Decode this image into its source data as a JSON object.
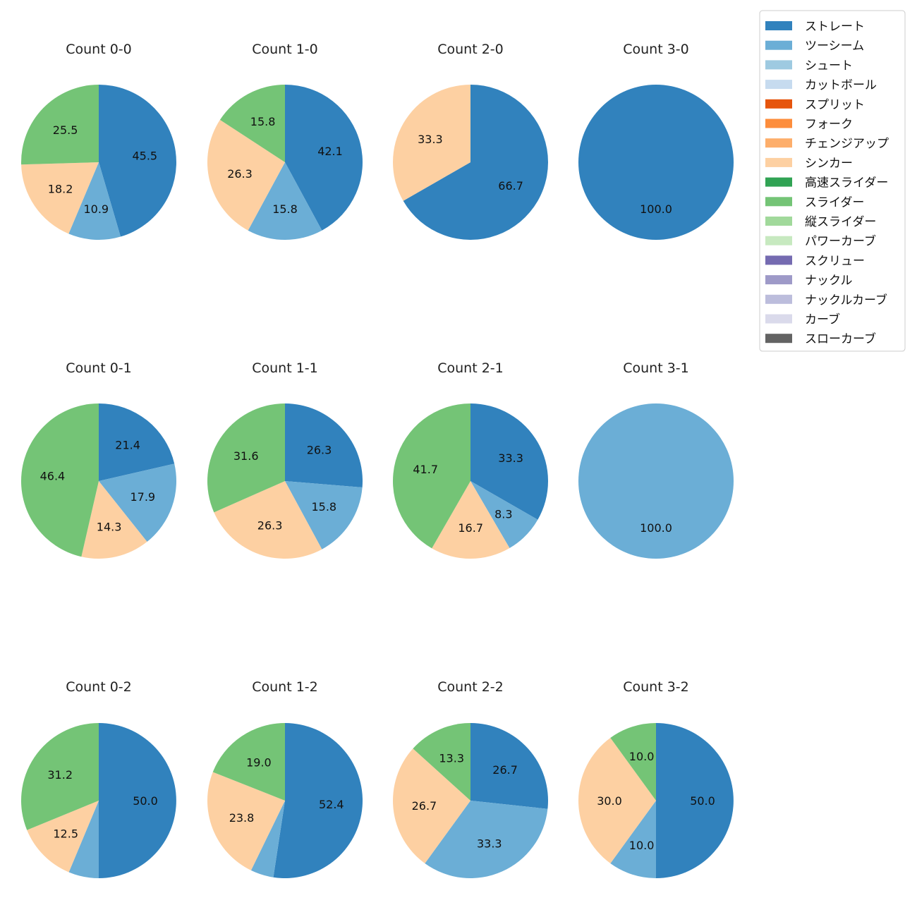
{
  "legend": {
    "placement": "top-right",
    "entries": [
      {
        "name": "ストレート",
        "color": "#3182bd"
      },
      {
        "name": "ツーシーム",
        "color": "#6baed6"
      },
      {
        "name": "シュート",
        "color": "#9ecae1"
      },
      {
        "name": "カットボール",
        "color": "#c6dbef"
      },
      {
        "name": "スプリット",
        "color": "#e6550d"
      },
      {
        "name": "フォーク",
        "color": "#fd8d3c"
      },
      {
        "name": "チェンジアップ",
        "color": "#fdae6b"
      },
      {
        "name": "シンカー",
        "color": "#fdd0a2"
      },
      {
        "name": "高速スライダー",
        "color": "#31a354"
      },
      {
        "name": "スライダー",
        "color": "#74c476"
      },
      {
        "name": "縦スライダー",
        "color": "#a1d99b"
      },
      {
        "name": "パワーカーブ",
        "color": "#c7e9c0"
      },
      {
        "name": "スクリュー",
        "color": "#756bb1"
      },
      {
        "name": "ナックル",
        "color": "#9e9ac8"
      },
      {
        "name": "ナックルカーブ",
        "color": "#bcbddc"
      },
      {
        "name": "カーブ",
        "color": "#dadaeb"
      },
      {
        "name": "スローカーブ",
        "color": "#636363"
      }
    ]
  },
  "chart_data": [
    {
      "type": "pie",
      "title": "Count 0-0",
      "slices": [
        {
          "name": "ストレート",
          "value": 45.5,
          "label": "45.5"
        },
        {
          "name": "ツーシーム",
          "value": 10.9,
          "label": "10.9"
        },
        {
          "name": "シンカー",
          "value": 18.2,
          "label": "18.2"
        },
        {
          "name": "スライダー",
          "value": 25.5,
          "label": "25.5"
        }
      ]
    },
    {
      "type": "pie",
      "title": "Count 1-0",
      "slices": [
        {
          "name": "ストレート",
          "value": 42.1,
          "label": "42.1"
        },
        {
          "name": "ツーシーム",
          "value": 15.8,
          "label": "15.8"
        },
        {
          "name": "シンカー",
          "value": 26.3,
          "label": "26.3"
        },
        {
          "name": "スライダー",
          "value": 15.8,
          "label": "15.8"
        }
      ]
    },
    {
      "type": "pie",
      "title": "Count 2-0",
      "slices": [
        {
          "name": "ストレート",
          "value": 66.7,
          "label": "66.7"
        },
        {
          "name": "シンカー",
          "value": 33.3,
          "label": "33.3"
        }
      ]
    },
    {
      "type": "pie",
      "title": "Count 3-0",
      "slices": [
        {
          "name": "ストレート",
          "value": 100.0,
          "label": "100.0"
        }
      ]
    },
    {
      "type": "pie",
      "title": "Count 0-1",
      "slices": [
        {
          "name": "ストレート",
          "value": 21.4,
          "label": "21.4"
        },
        {
          "name": "ツーシーム",
          "value": 17.9,
          "label": "17.9"
        },
        {
          "name": "シンカー",
          "value": 14.3,
          "label": "14.3"
        },
        {
          "name": "スライダー",
          "value": 46.4,
          "label": "46.4"
        }
      ]
    },
    {
      "type": "pie",
      "title": "Count 1-1",
      "slices": [
        {
          "name": "ストレート",
          "value": 26.3,
          "label": "26.3"
        },
        {
          "name": "ツーシーム",
          "value": 15.8,
          "label": "15.8"
        },
        {
          "name": "シンカー",
          "value": 26.3,
          "label": "26.3"
        },
        {
          "name": "スライダー",
          "value": 31.6,
          "label": "31.6"
        }
      ]
    },
    {
      "type": "pie",
      "title": "Count 2-1",
      "slices": [
        {
          "name": "ストレート",
          "value": 33.3,
          "label": "33.3"
        },
        {
          "name": "ツーシーム",
          "value": 8.3,
          "label": "8.3"
        },
        {
          "name": "シンカー",
          "value": 16.7,
          "label": "16.7"
        },
        {
          "name": "スライダー",
          "value": 41.7,
          "label": "41.7"
        }
      ]
    },
    {
      "type": "pie",
      "title": "Count 3-1",
      "slices": [
        {
          "name": "ツーシーム",
          "value": 100.0,
          "label": "100.0"
        }
      ]
    },
    {
      "type": "pie",
      "title": "Count 0-2",
      "slices": [
        {
          "name": "ストレート",
          "value": 50.0,
          "label": "50.0"
        },
        {
          "name": "ツーシーム",
          "value": 6.3,
          "label": ""
        },
        {
          "name": "シンカー",
          "value": 12.5,
          "label": "12.5"
        },
        {
          "name": "スライダー",
          "value": 31.2,
          "label": "31.2"
        }
      ]
    },
    {
      "type": "pie",
      "title": "Count 1-2",
      "slices": [
        {
          "name": "ストレート",
          "value": 52.4,
          "label": "52.4"
        },
        {
          "name": "ツーシーム",
          "value": 4.8,
          "label": ""
        },
        {
          "name": "シンカー",
          "value": 23.8,
          "label": "23.8"
        },
        {
          "name": "スライダー",
          "value": 19.0,
          "label": "19.0"
        }
      ]
    },
    {
      "type": "pie",
      "title": "Count 2-2",
      "slices": [
        {
          "name": "ストレート",
          "value": 26.7,
          "label": "26.7"
        },
        {
          "name": "ツーシーム",
          "value": 33.3,
          "label": "33.3"
        },
        {
          "name": "シンカー",
          "value": 26.7,
          "label": "26.7"
        },
        {
          "name": "スライダー",
          "value": 13.3,
          "label": "13.3"
        }
      ]
    },
    {
      "type": "pie",
      "title": "Count 3-2",
      "slices": [
        {
          "name": "ストレート",
          "value": 50.0,
          "label": "50.0"
        },
        {
          "name": "ツーシーム",
          "value": 10.0,
          "label": "10.0"
        },
        {
          "name": "シンカー",
          "value": 30.0,
          "label": "30.0"
        },
        {
          "name": "スライダー",
          "value": 10.0,
          "label": "10.0"
        }
      ]
    }
  ]
}
